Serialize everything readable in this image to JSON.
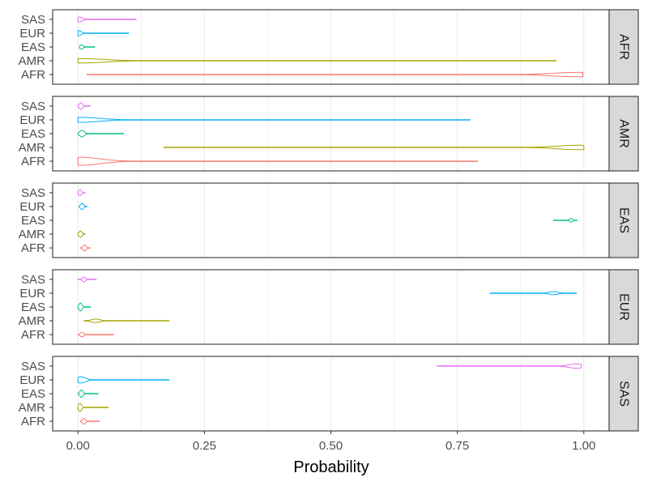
{
  "chart_data": {
    "type": "violin",
    "xlabel": "Probability",
    "x_ticks": [
      "0.00",
      "0.25",
      "0.50",
      "0.75",
      "1.00"
    ],
    "x_tick_values": [
      0,
      0.25,
      0.5,
      0.75,
      1.0
    ],
    "xlim": [
      -0.05,
      1.05
    ],
    "grid": true,
    "facet_labels": [
      "AFR",
      "AMR",
      "EAS",
      "EUR",
      "SAS"
    ],
    "y_categories": [
      "SAS",
      "EUR",
      "EAS",
      "AMR",
      "AFR"
    ],
    "colors": {
      "AFR": "#F8766D",
      "AMR": "#A3A500",
      "EAS": "#00BF7D",
      "EUR": "#00B0F6",
      "SAS": "#E76BF3"
    },
    "panels": [
      {
        "facet": "AFR",
        "violins": [
          {
            "group": "SAS",
            "min": 0.0,
            "max": 0.115,
            "peak": 0.003,
            "width": 0.55
          },
          {
            "group": "EUR",
            "min": 0.0,
            "max": 0.1,
            "peak": 0.001,
            "width": 0.6
          },
          {
            "group": "EAS",
            "min": 0.003,
            "max": 0.033,
            "peak": 0.007,
            "width": 0.5
          },
          {
            "group": "AMR",
            "min": 0.0,
            "max": 0.945,
            "peak": 0.004,
            "width": 0.5
          },
          {
            "group": "AFR",
            "min": 0.018,
            "max": 0.998,
            "peak": 0.99,
            "width": 0.5
          }
        ]
      },
      {
        "facet": "AMR",
        "violins": [
          {
            "group": "SAS",
            "min": 0.0,
            "max": 0.024,
            "peak": 0.006,
            "width": 0.75
          },
          {
            "group": "EUR",
            "min": 0.0,
            "max": 0.775,
            "peak": 0.004,
            "width": 0.55
          },
          {
            "group": "EAS",
            "min": 0.0,
            "max": 0.09,
            "peak": 0.008,
            "width": 0.75
          },
          {
            "group": "AMR",
            "min": 0.17,
            "max": 1.0,
            "peak": 0.99,
            "width": 0.5
          },
          {
            "group": "AFR",
            "min": 0.0,
            "max": 0.79,
            "peak": 0.004,
            "width": 0.9
          }
        ]
      },
      {
        "facet": "EAS",
        "violins": [
          {
            "group": "SAS",
            "min": 0.0,
            "max": 0.014,
            "peak": 0.004,
            "width": 0.65
          },
          {
            "group": "EUR",
            "min": 0.002,
            "max": 0.018,
            "peak": 0.008,
            "width": 0.7
          },
          {
            "group": "EAS",
            "min": 0.94,
            "max": 0.987,
            "peak": 0.975,
            "width": 0.4
          },
          {
            "group": "AMR",
            "min": 0.0,
            "max": 0.014,
            "peak": 0.005,
            "width": 0.7
          },
          {
            "group": "AFR",
            "min": 0.005,
            "max": 0.024,
            "peak": 0.013,
            "width": 0.7
          }
        ]
      },
      {
        "facet": "EUR",
        "violins": [
          {
            "group": "SAS",
            "min": 0.0,
            "max": 0.036,
            "peak": 0.012,
            "width": 0.55
          },
          {
            "group": "EUR",
            "min": 0.815,
            "max": 0.985,
            "peak": 0.94,
            "width": 0.35
          },
          {
            "group": "EAS",
            "min": 0.0,
            "max": 0.025,
            "peak": 0.005,
            "width": 0.9
          },
          {
            "group": "AMR",
            "min": 0.012,
            "max": 0.18,
            "peak": 0.035,
            "width": 0.4
          },
          {
            "group": "AFR",
            "min": 0.0,
            "max": 0.07,
            "peak": 0.008,
            "width": 0.5
          }
        ]
      },
      {
        "facet": "SAS",
        "violins": [
          {
            "group": "SAS",
            "min": 0.71,
            "max": 0.995,
            "peak": 0.985,
            "width": 0.5
          },
          {
            "group": "EUR",
            "min": 0.0,
            "max": 0.18,
            "peak": 0.006,
            "width": 0.7
          },
          {
            "group": "EAS",
            "min": 0.0,
            "max": 0.04,
            "peak": 0.007,
            "width": 0.8
          },
          {
            "group": "AMR",
            "min": 0.0,
            "max": 0.06,
            "peak": 0.004,
            "width": 0.9
          },
          {
            "group": "AFR",
            "min": 0.005,
            "max": 0.042,
            "peak": 0.012,
            "width": 0.65
          }
        ]
      }
    ]
  }
}
